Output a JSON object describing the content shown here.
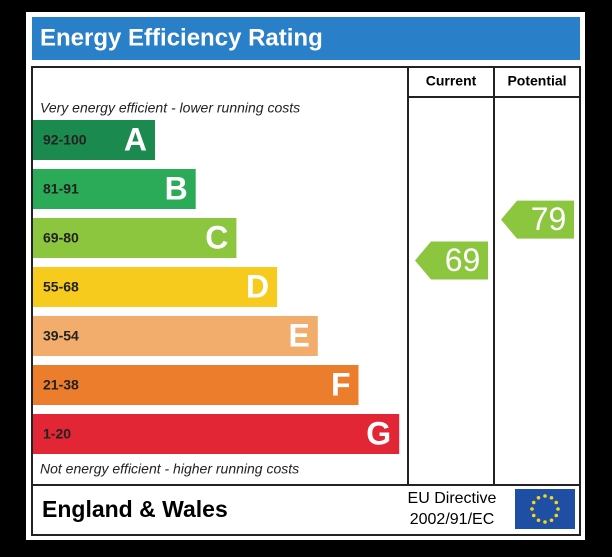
{
  "header": {
    "title": "Energy Efficiency Rating"
  },
  "columns": {
    "current": "Current",
    "potential": "Potential"
  },
  "top_note": "Very energy efficient - lower running costs",
  "bottom_note": "Not energy efficient - higher running costs",
  "bands": [
    {
      "range": "92-100",
      "letter": "A",
      "color": "#1b8a4f"
    },
    {
      "range": "81-91",
      "letter": "B",
      "color": "#2bab57"
    },
    {
      "range": "69-80",
      "letter": "C",
      "color": "#8cc63f"
    },
    {
      "range": "55-68",
      "letter": "D",
      "color": "#f6cb1e"
    },
    {
      "range": "39-54",
      "letter": "E",
      "color": "#f2ad6c"
    },
    {
      "range": "21-38",
      "letter": "F",
      "color": "#ec7d2c"
    },
    {
      "range": "1-20",
      "letter": "G",
      "color": "#e32636"
    }
  ],
  "ratings": {
    "current": 69,
    "potential": 79
  },
  "footer": {
    "region": "England & Wales",
    "directive": [
      "EU Directive",
      "2002/91/EC"
    ]
  }
}
